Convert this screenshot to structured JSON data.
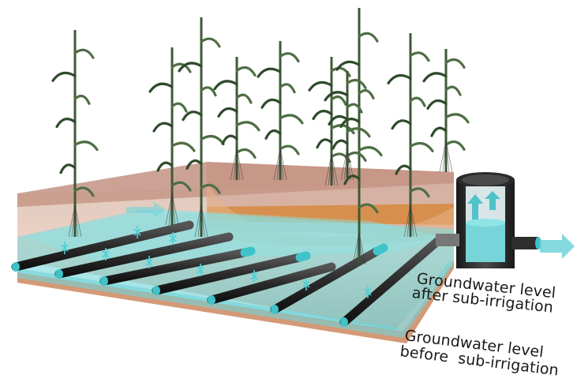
{
  "labels": {
    "after_line1": "Groundwater level",
    "after_line2": "after sub-irrigation",
    "before_line1": "Groundwater level",
    "before_line2": "before  sub-irrigation"
  },
  "colors": {
    "soil_top": "#b98372",
    "soil_layer": "#d6935a",
    "water": "#5fd0d6",
    "pipe": "#2b2b2b",
    "pipe_cap": "#3fc3c9",
    "stalk": "#3d5a36"
  },
  "icons": {
    "crop": "maize-plant-icon",
    "pipe": "drain-pipe-icon",
    "flow": "flow-arrow-icon"
  }
}
